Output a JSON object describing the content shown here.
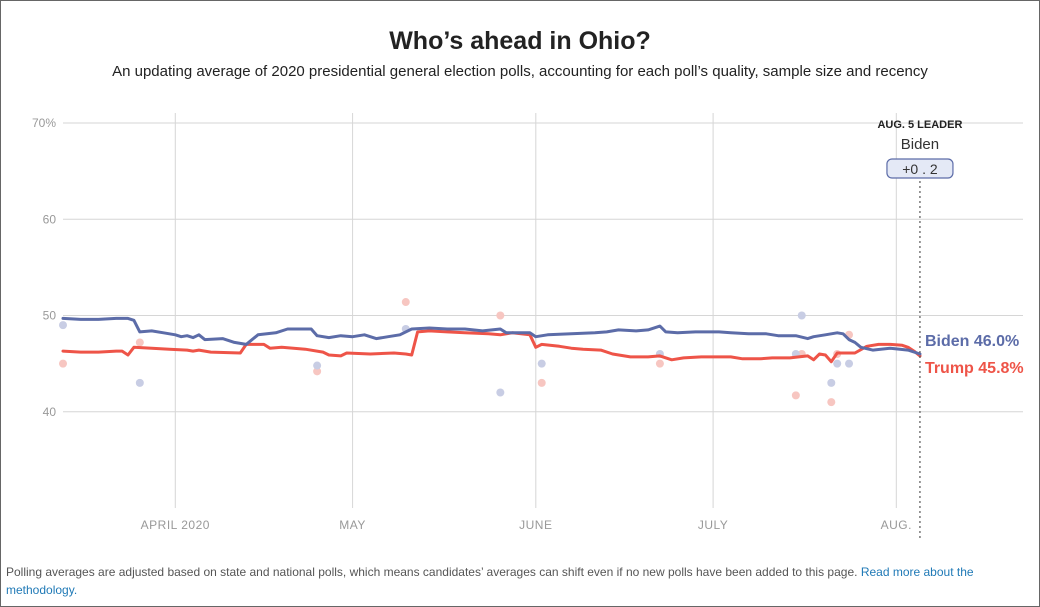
{
  "header": {
    "title": "Who’s ahead in Ohio?",
    "subtitle": "An updating average of 2020 presidential general election polls, accounting for each poll’s quality, sample size and recency"
  },
  "leader": {
    "date_label": "AUG. 5 LEADER",
    "name": "Biden",
    "margin": "+0 . 2"
  },
  "footer": {
    "note": "Polling averages are adjusted based on state and national polls, which means candidates’ averages can shift even if no new polls have been added to this page.",
    "link_text": "Read more about the methodology."
  },
  "colors": {
    "biden": "#5c6ca8",
    "trump": "#ee5448",
    "biden_dot": "#c8cde4",
    "trump_dot": "#f7c6c1",
    "grid": "#d6d6d6",
    "tick": "#999999",
    "badge_bg": "#e4e9f6",
    "badge_border": "#5c6ca8"
  },
  "chart_data": {
    "type": "line",
    "title": "Who’s ahead in Ohio?",
    "x_domain": [
      0,
      147
    ],
    "ylim": [
      30,
      70
    ],
    "y_ticks": [
      {
        "value": 70,
        "label": "70%"
      },
      {
        "value": 60,
        "label": "60"
      },
      {
        "value": 50,
        "label": "50"
      },
      {
        "value": 40,
        "label": "40"
      }
    ],
    "x_ticks": [
      {
        "day": 19,
        "label": "APRIL 2020"
      },
      {
        "day": 49,
        "label": "MAY"
      },
      {
        "day": 80,
        "label": "JUNE"
      },
      {
        "day": 110,
        "label": "JULY"
      },
      {
        "day": 141,
        "label": "AUG."
      }
    ],
    "current_day": 145,
    "series": [
      {
        "name": "Biden",
        "end_label": "Biden 46.0%",
        "points": [
          [
            0,
            49.7
          ],
          [
            3,
            49.6
          ],
          [
            6,
            49.6
          ],
          [
            9,
            49.7
          ],
          [
            11,
            49.7
          ],
          [
            12,
            49.5
          ],
          [
            13,
            48.3
          ],
          [
            15,
            48.4
          ],
          [
            17,
            48.2
          ],
          [
            19,
            48.0
          ],
          [
            20,
            47.8
          ],
          [
            21,
            47.9
          ],
          [
            22,
            47.7
          ],
          [
            23,
            48.0
          ],
          [
            24,
            47.5
          ],
          [
            27,
            47.6
          ],
          [
            29,
            47.2
          ],
          [
            31,
            47.0
          ],
          [
            33,
            48.0
          ],
          [
            36,
            48.2
          ],
          [
            38,
            48.6
          ],
          [
            42,
            48.6
          ],
          [
            43,
            47.9
          ],
          [
            45,
            47.7
          ],
          [
            47,
            47.9
          ],
          [
            49,
            47.8
          ],
          [
            51,
            48.0
          ],
          [
            53,
            47.6
          ],
          [
            55,
            47.8
          ],
          [
            57,
            48.0
          ],
          [
            59,
            48.6
          ],
          [
            62,
            48.7
          ],
          [
            65,
            48.6
          ],
          [
            68,
            48.6
          ],
          [
            71,
            48.4
          ],
          [
            74,
            48.6
          ],
          [
            75,
            48.2
          ],
          [
            79,
            48.2
          ],
          [
            80,
            47.8
          ],
          [
            82,
            48.0
          ],
          [
            86,
            48.1
          ],
          [
            90,
            48.2
          ],
          [
            92,
            48.3
          ],
          [
            94,
            48.5
          ],
          [
            97,
            48.4
          ],
          [
            99,
            48.5
          ],
          [
            101,
            48.9
          ],
          [
            102,
            48.3
          ],
          [
            104,
            48.2
          ],
          [
            107,
            48.3
          ],
          [
            111,
            48.3
          ],
          [
            113,
            48.2
          ],
          [
            116,
            48.1
          ],
          [
            119,
            48.1
          ],
          [
            121,
            47.9
          ],
          [
            124,
            47.9
          ],
          [
            126,
            47.6
          ],
          [
            127,
            47.8
          ],
          [
            129,
            48.0
          ],
          [
            131,
            48.2
          ],
          [
            132,
            48.1
          ],
          [
            133,
            47.5
          ],
          [
            134,
            47.2
          ],
          [
            135,
            46.7
          ],
          [
            137,
            46.4
          ],
          [
            140,
            46.6
          ],
          [
            143,
            46.4
          ],
          [
            145,
            46.0
          ]
        ]
      },
      {
        "name": "Trump",
        "end_label": "Trump 45.8%",
        "points": [
          [
            0,
            46.3
          ],
          [
            3,
            46.2
          ],
          [
            6,
            46.2
          ],
          [
            9,
            46.3
          ],
          [
            10,
            46.3
          ],
          [
            11,
            45.9
          ],
          [
            12,
            46.7
          ],
          [
            15,
            46.6
          ],
          [
            18,
            46.5
          ],
          [
            21,
            46.4
          ],
          [
            22,
            46.3
          ],
          [
            23,
            46.4
          ],
          [
            25,
            46.2
          ],
          [
            30,
            46.1
          ],
          [
            31,
            47.0
          ],
          [
            34,
            47.0
          ],
          [
            35,
            46.6
          ],
          [
            37,
            46.7
          ],
          [
            39,
            46.6
          ],
          [
            41,
            46.5
          ],
          [
            44,
            46.2
          ],
          [
            45,
            45.9
          ],
          [
            47,
            45.8
          ],
          [
            48,
            46.1
          ],
          [
            52,
            46.0
          ],
          [
            56,
            46.1
          ],
          [
            58,
            46.0
          ],
          [
            59,
            45.9
          ],
          [
            60,
            48.3
          ],
          [
            62,
            48.4
          ],
          [
            65,
            48.3
          ],
          [
            68,
            48.2
          ],
          [
            72,
            48.1
          ],
          [
            74,
            48.0
          ],
          [
            76,
            48.2
          ],
          [
            79,
            48.0
          ],
          [
            80,
            46.7
          ],
          [
            81,
            47.0
          ],
          [
            84,
            46.8
          ],
          [
            86,
            46.6
          ],
          [
            88,
            46.5
          ],
          [
            91,
            46.4
          ],
          [
            93,
            46.0
          ],
          [
            96,
            45.7
          ],
          [
            99,
            45.7
          ],
          [
            101,
            45.8
          ],
          [
            103,
            45.4
          ],
          [
            105,
            45.6
          ],
          [
            108,
            45.7
          ],
          [
            110,
            45.7
          ],
          [
            113,
            45.7
          ],
          [
            115,
            45.5
          ],
          [
            118,
            45.5
          ],
          [
            120,
            45.6
          ],
          [
            123,
            45.6
          ],
          [
            126,
            45.8
          ],
          [
            127,
            45.4
          ],
          [
            128,
            46.0
          ],
          [
            129,
            45.9
          ],
          [
            130,
            45.2
          ],
          [
            131,
            46.1
          ],
          [
            134,
            46.1
          ],
          [
            136,
            46.8
          ],
          [
            138,
            47.0
          ],
          [
            140,
            47.0
          ],
          [
            142,
            46.9
          ],
          [
            143,
            46.7
          ],
          [
            144,
            46.3
          ],
          [
            145,
            45.8
          ]
        ]
      }
    ],
    "polls": {
      "biden": [
        [
          0,
          49.0
        ],
        [
          13,
          43.0
        ],
        [
          43,
          44.8
        ],
        [
          58,
          48.6
        ],
        [
          74,
          42.0
        ],
        [
          81,
          45.0
        ],
        [
          101,
          46.0
        ],
        [
          124,
          46.0
        ],
        [
          125,
          50.0
        ],
        [
          130,
          43.0
        ],
        [
          131,
          45.0
        ],
        [
          133,
          45.0
        ]
      ],
      "trump": [
        [
          0,
          45.0
        ],
        [
          13,
          47.2
        ],
        [
          43,
          44.2
        ],
        [
          58,
          51.4
        ],
        [
          74,
          50.0
        ],
        [
          81,
          43.0
        ],
        [
          101,
          45.0
        ],
        [
          124,
          41.7
        ],
        [
          125,
          46.0
        ],
        [
          130,
          41.0
        ],
        [
          131,
          46.0
        ],
        [
          133,
          48.0
        ]
      ]
    }
  }
}
